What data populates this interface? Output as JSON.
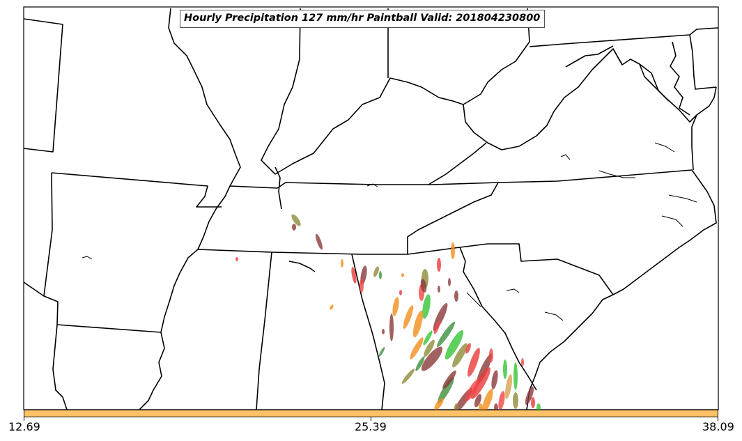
{
  "title": "Hourly Precipitation 127 mm/hr Paintball Valid: 201804230800",
  "colorbar": {
    "fill_color": "#ffc266",
    "tick_labels": [
      "12.69",
      "25.39",
      "38.09"
    ]
  },
  "paintball_colors": [
    "#e83a3a",
    "#35c435",
    "#f28f1b",
    "#8b3a3a",
    "#8f8c3a",
    "#3f8f3f",
    "#f04545",
    "#d9a050"
  ],
  "colors": {
    "background": "#ffffff",
    "boundary": "#000000"
  }
}
